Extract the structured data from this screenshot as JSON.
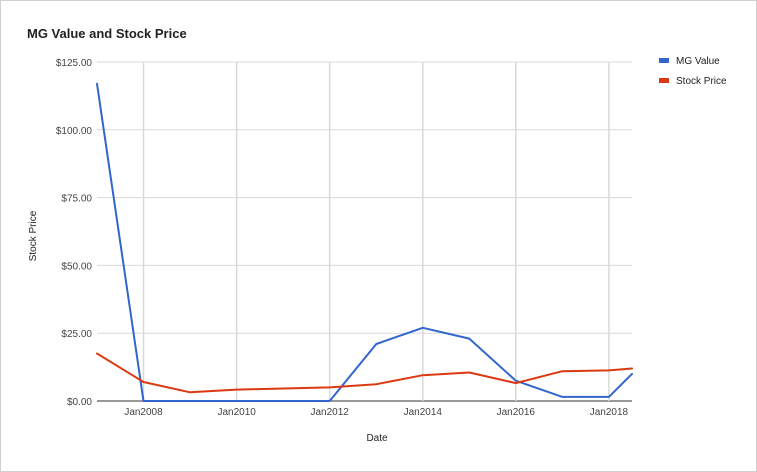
{
  "chart_data": {
    "type": "line",
    "title": "MG Value and Stock Price",
    "xlabel": "Date",
    "ylabel": "Stock Price",
    "ylim": [
      0,
      125
    ],
    "xlim": [
      "2007-01-01",
      "2018-07-01"
    ],
    "grid": true,
    "legend_position": "right",
    "x": [
      "2007-01-01",
      "2008-01-01",
      "2009-01-01",
      "2010-01-01",
      "2011-01-01",
      "2012-01-01",
      "2013-01-01",
      "2014-01-01",
      "2015-01-01",
      "2016-01-01",
      "2017-01-01",
      "2018-01-01",
      "2018-07-01"
    ],
    "x_ticks": [
      {
        "label": "Jan2008",
        "date": "2008-01-01"
      },
      {
        "label": "Jan2010",
        "date": "2010-01-01"
      },
      {
        "label": "Jan2012",
        "date": "2012-01-01"
      },
      {
        "label": "Jan2014",
        "date": "2014-01-01"
      },
      {
        "label": "Jan2016",
        "date": "2016-01-01"
      },
      {
        "label": "Jan2018",
        "date": "2018-01-01"
      }
    ],
    "y_ticks": [
      {
        "label": "$0.00",
        "value": 0
      },
      {
        "label": "$25.00",
        "value": 25
      },
      {
        "label": "$50.00",
        "value": 50
      },
      {
        "label": "$75.00",
        "value": 75
      },
      {
        "label": "$100.00",
        "value": 100
      },
      {
        "label": "$125.00",
        "value": 125
      }
    ],
    "series": [
      {
        "name": "MG Value",
        "color": "#3366cc",
        "values": [
          117,
          0,
          0,
          0,
          0,
          0,
          21,
          27,
          23,
          7.5,
          1.5,
          1.5,
          10
        ]
      },
      {
        "name": "Stock Price",
        "color": "#dc3912",
        "values": [
          17.5,
          7,
          3.2,
          4.2,
          4.6,
          5,
          6.2,
          9.5,
          10.5,
          6.6,
          11,
          11.3,
          12
        ]
      }
    ]
  }
}
